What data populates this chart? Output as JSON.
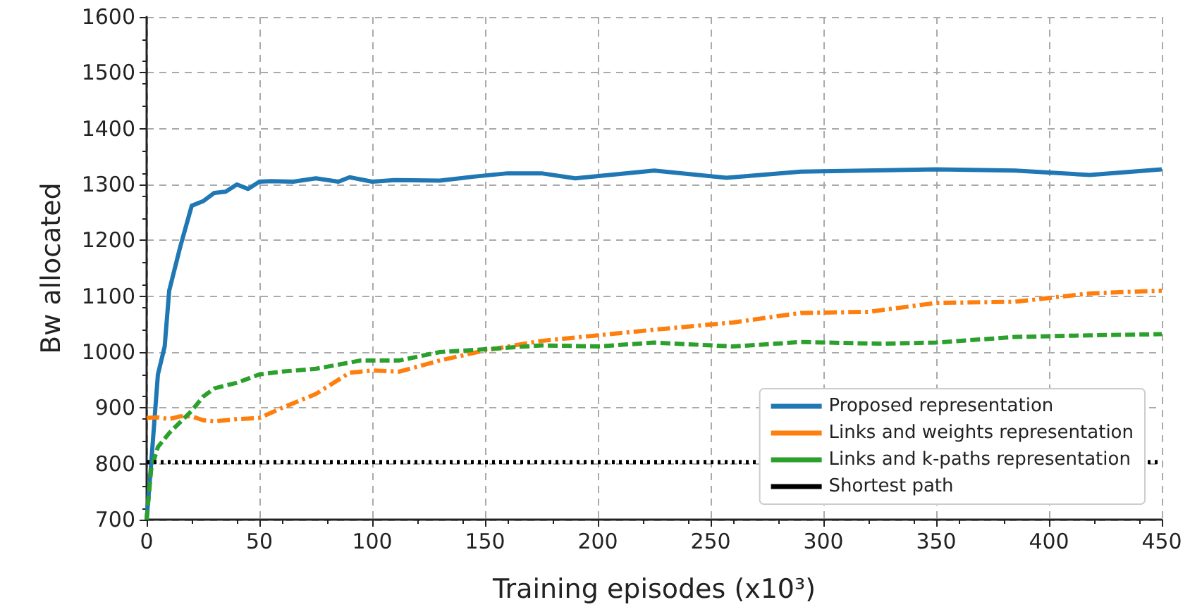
{
  "chart_data": {
    "type": "line",
    "xlabel": "Training episodes (x10³)",
    "ylabel": "Bw allocated",
    "xlim": [
      0,
      450
    ],
    "xticks": [
      0,
      50,
      100,
      150,
      200,
      250,
      300,
      350,
      400,
      450
    ],
    "ylim": [
      700,
      1600
    ],
    "yticks": [
      700,
      800,
      900,
      1000,
      1100,
      1200,
      1300,
      1400,
      1500,
      1600
    ],
    "grid": true,
    "legend": "bottom right",
    "marker": "none",
    "series": [
      {
        "name": "Proposed representation",
        "color": "#1f77b4",
        "line_style": "solid",
        "x": [
          0,
          2,
          5,
          8,
          10,
          15,
          20,
          25,
          30,
          35,
          40,
          45,
          50,
          55,
          65,
          75,
          85,
          90,
          100,
          110,
          130,
          145,
          160,
          175,
          190,
          225,
          257,
          290,
          350,
          385,
          418,
          450
        ],
        "values": [
          700,
          800,
          960,
          1010,
          1110,
          1190,
          1262,
          1270,
          1285,
          1287,
          1300,
          1292,
          1305,
          1306,
          1305,
          1311,
          1305,
          1313,
          1305,
          1308,
          1307,
          1314,
          1320,
          1320,
          1311,
          1325,
          1312,
          1323,
          1327,
          1325,
          1317,
          1327
        ]
      },
      {
        "name": "Links and weights representation",
        "color": "#ff7f0e",
        "line_style": "dashdot",
        "x": [
          0,
          5,
          10,
          15,
          20,
          25,
          30,
          40,
          50,
          60,
          75,
          90,
          100,
          112,
          130,
          150,
          175,
          200,
          225,
          260,
          290,
          320,
          350,
          385,
          418,
          450
        ],
        "values": [
          882,
          883,
          880,
          885,
          885,
          878,
          876,
          880,
          882,
          900,
          925,
          963,
          967,
          965,
          985,
          1003,
          1020,
          1030,
          1040,
          1053,
          1070,
          1072,
          1088,
          1090,
          1105,
          1110
        ]
      },
      {
        "name": "Links and k-paths representation",
        "color": "#2ca02c",
        "line_style": "dashed",
        "x": [
          0,
          2,
          5,
          10,
          15,
          20,
          25,
          30,
          40,
          50,
          60,
          75,
          95,
          112,
          130,
          150,
          175,
          200,
          225,
          260,
          290,
          325,
          350,
          385,
          418,
          450
        ],
        "values": [
          700,
          790,
          830,
          855,
          875,
          895,
          920,
          935,
          945,
          960,
          965,
          970,
          985,
          985,
          1000,
          1005,
          1012,
          1010,
          1017,
          1010,
          1018,
          1015,
          1017,
          1027,
          1030,
          1032
        ]
      },
      {
        "name": "Shortest path",
        "color": "#000000",
        "line_style": "dotted",
        "x": [
          0,
          450
        ],
        "values": [
          803,
          803
        ]
      }
    ]
  }
}
